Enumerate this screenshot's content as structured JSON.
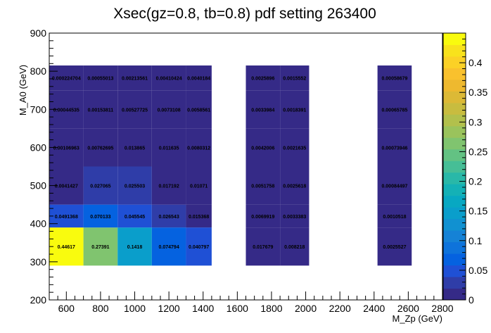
{
  "chart_data": {
    "type": "heatmap",
    "title": "Xsec(gz=0.8, tb=0.8) pdf setting 263400",
    "xlabel": "M_Zp (GeV)",
    "ylabel": "M_A0 (GeV)",
    "xlim": [
      500,
      2800
    ],
    "ylim": [
      200,
      900
    ],
    "x_ticks": [
      600,
      800,
      1000,
      1200,
      1400,
      1600,
      1800,
      2000,
      2200,
      2400,
      2600,
      2800
    ],
    "y_ticks": [
      200,
      300,
      400,
      500,
      600,
      700,
      800,
      900
    ],
    "zlim": [
      0,
      0.45
    ],
    "z_ticks": [
      0,
      0.05,
      0.1,
      0.15,
      0.2,
      0.25,
      0.3,
      0.35,
      0.4
    ],
    "z_tick_labels": [
      "0",
      "0.05",
      "0.1",
      "0.15",
      "0.2",
      "0.25",
      "0.3",
      "0.35",
      "0.4"
    ],
    "palette": [
      "#352a87",
      "#2f3da8",
      "#1f50d5",
      "#0562e0",
      "#0e73db",
      "#1582d6",
      "#1191d1",
      "#0a9ecb",
      "#08a8c2",
      "#14b1b6",
      "#29b8a8",
      "#46be96",
      "#63c283",
      "#80c46f",
      "#9ac35c",
      "#b2c04c",
      "#c8bc3f",
      "#dcb936",
      "#eeb92f",
      "#f9c12d",
      "#fbd126",
      "#f8e21c",
      "#f9fb0e"
    ],
    "cells": [
      {
        "x": [
          500,
          700
        ],
        "y": [
          290,
          390
        ],
        "value": 0.44617,
        "label": "0.44617"
      },
      {
        "x": [
          700,
          900
        ],
        "y": [
          290,
          390
        ],
        "value": 0.27391,
        "label": "0.27391"
      },
      {
        "x": [
          900,
          1100
        ],
        "y": [
          290,
          390
        ],
        "value": 0.1418,
        "label": "0.1418"
      },
      {
        "x": [
          1100,
          1300
        ],
        "y": [
          290,
          390
        ],
        "value": 0.074794,
        "label": "0.074794"
      },
      {
        "x": [
          1300,
          1450
        ],
        "y": [
          290,
          390
        ],
        "value": 0.040797,
        "label": "0.040797"
      },
      {
        "x": [
          1650,
          1850
        ],
        "y": [
          290,
          390
        ],
        "value": 0.017679,
        "label": "0.017679"
      },
      {
        "x": [
          1850,
          2020
        ],
        "y": [
          290,
          390
        ],
        "value": 0.008218,
        "label": "0.008218"
      },
      {
        "x": [
          2420,
          2620
        ],
        "y": [
          290,
          390
        ],
        "value": 0.0025527,
        "label": "0.0025527"
      },
      {
        "x": [
          500,
          700
        ],
        "y": [
          390,
          450
        ],
        "value": 0.0491368,
        "label": "0.0491368"
      },
      {
        "x": [
          700,
          900
        ],
        "y": [
          390,
          450
        ],
        "value": 0.070133,
        "label": "0.070133"
      },
      {
        "x": [
          900,
          1100
        ],
        "y": [
          390,
          450
        ],
        "value": 0.045545,
        "label": "0.045545"
      },
      {
        "x": [
          1100,
          1300
        ],
        "y": [
          390,
          450
        ],
        "value": 0.026543,
        "label": "0.026543"
      },
      {
        "x": [
          1300,
          1450
        ],
        "y": [
          390,
          450
        ],
        "value": 0.015368,
        "label": "0.015368"
      },
      {
        "x": [
          1650,
          1850
        ],
        "y": [
          390,
          450
        ],
        "value": 0.0069919,
        "label": "0.0069919"
      },
      {
        "x": [
          1850,
          2020
        ],
        "y": [
          390,
          450
        ],
        "value": 0.0033383,
        "label": "0.0033383"
      },
      {
        "x": [
          2420,
          2620
        ],
        "y": [
          390,
          450
        ],
        "value": 0.0010518,
        "label": "0.0010518"
      },
      {
        "x": [
          500,
          700
        ],
        "y": [
          450,
          550
        ],
        "value": 0.0041427,
        "label": "0.0041427"
      },
      {
        "x": [
          700,
          900
        ],
        "y": [
          450,
          550
        ],
        "value": 0.027065,
        "label": "0.027065"
      },
      {
        "x": [
          900,
          1100
        ],
        "y": [
          450,
          550
        ],
        "value": 0.025503,
        "label": "0.025503"
      },
      {
        "x": [
          1100,
          1300
        ],
        "y": [
          450,
          550
        ],
        "value": 0.017192,
        "label": "0.017192"
      },
      {
        "x": [
          1300,
          1450
        ],
        "y": [
          450,
          550
        ],
        "value": 0.01071,
        "label": "0.01071"
      },
      {
        "x": [
          1650,
          1850
        ],
        "y": [
          450,
          550
        ],
        "value": 0.0051758,
        "label": "0.0051758"
      },
      {
        "x": [
          1850,
          2020
        ],
        "y": [
          450,
          550
        ],
        "value": 0.0025618,
        "label": "0.0025618"
      },
      {
        "x": [
          2420,
          2620
        ],
        "y": [
          450,
          550
        ],
        "value": 0.00084497,
        "label": "0.00084497"
      },
      {
        "x": [
          500,
          700
        ],
        "y": [
          550,
          650
        ],
        "value": 0.00106963,
        "label": "0.00106963"
      },
      {
        "x": [
          700,
          900
        ],
        "y": [
          550,
          650
        ],
        "value": 0.00762695,
        "label": "0.00762695"
      },
      {
        "x": [
          900,
          1100
        ],
        "y": [
          550,
          650
        ],
        "value": 0.013865,
        "label": "0.013865"
      },
      {
        "x": [
          1100,
          1300
        ],
        "y": [
          550,
          650
        ],
        "value": 0.011635,
        "label": "0.011635"
      },
      {
        "x": [
          1300,
          1450
        ],
        "y": [
          550,
          650
        ],
        "value": 0.0080312,
        "label": "0.0080312"
      },
      {
        "x": [
          1650,
          1850
        ],
        "y": [
          550,
          650
        ],
        "value": 0.0042006,
        "label": "0.0042006"
      },
      {
        "x": [
          1850,
          2020
        ],
        "y": [
          550,
          650
        ],
        "value": 0.0021635,
        "label": "0.0021635"
      },
      {
        "x": [
          2420,
          2620
        ],
        "y": [
          550,
          650
        ],
        "value": 0.00073946,
        "label": "0.00073946"
      },
      {
        "x": [
          500,
          700
        ],
        "y": [
          650,
          750
        ],
        "value": 0.00044535,
        "label": "0.00044535"
      },
      {
        "x": [
          700,
          900
        ],
        "y": [
          650,
          750
        ],
        "value": 0.00153811,
        "label": "0.00153811"
      },
      {
        "x": [
          900,
          1100
        ],
        "y": [
          650,
          750
        ],
        "value": 0.00527725,
        "label": "0.00527725"
      },
      {
        "x": [
          1100,
          1300
        ],
        "y": [
          650,
          750
        ],
        "value": 0.0073108,
        "label": "0.0073108"
      },
      {
        "x": [
          1300,
          1450
        ],
        "y": [
          650,
          750
        ],
        "value": 0.0058561,
        "label": "0.0058561"
      },
      {
        "x": [
          1650,
          1850
        ],
        "y": [
          650,
          750
        ],
        "value": 0.0033984,
        "label": "0.0033984"
      },
      {
        "x": [
          1850,
          2020
        ],
        "y": [
          650,
          750
        ],
        "value": 0.0018391,
        "label": "0.0018391"
      },
      {
        "x": [
          2420,
          2620
        ],
        "y": [
          650,
          750
        ],
        "value": 0.00065785,
        "label": "0.00065785"
      },
      {
        "x": [
          500,
          700
        ],
        "y": [
          750,
          815
        ],
        "value": 0.000224704,
        "label": "0.000224704"
      },
      {
        "x": [
          700,
          900
        ],
        "y": [
          750,
          815
        ],
        "value": 0.00055013,
        "label": "0.00055013"
      },
      {
        "x": [
          900,
          1100
        ],
        "y": [
          750,
          815
        ],
        "value": 0.00213561,
        "label": "0.00213561"
      },
      {
        "x": [
          1100,
          1300
        ],
        "y": [
          750,
          815
        ],
        "value": 0.00410424,
        "label": "0.00410424"
      },
      {
        "x": [
          1300,
          1450
        ],
        "y": [
          750,
          815
        ],
        "value": 0.0040184,
        "label": "0.0040184"
      },
      {
        "x": [
          1650,
          1850
        ],
        "y": [
          750,
          815
        ],
        "value": 0.0025896,
        "label": "0.0025896"
      },
      {
        "x": [
          1850,
          2020
        ],
        "y": [
          750,
          815
        ],
        "value": 0.0015552,
        "label": "0.0015552"
      },
      {
        "x": [
          2420,
          2620
        ],
        "y": [
          750,
          815
        ],
        "value": 0.00058679,
        "label": "0.00058679"
      }
    ]
  }
}
